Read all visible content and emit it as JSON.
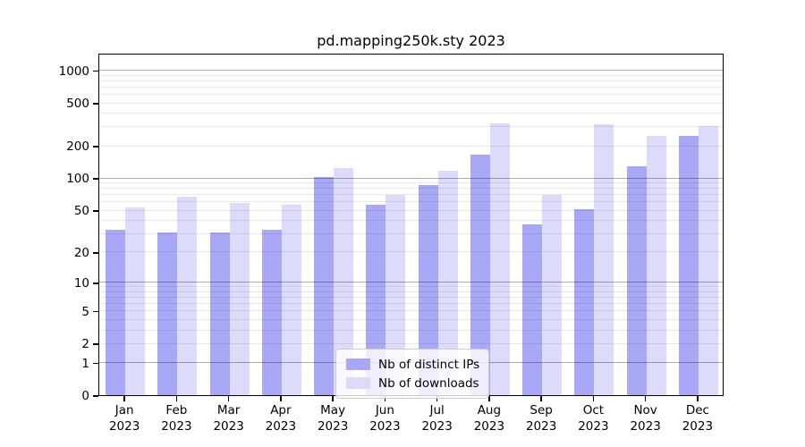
{
  "chart_data": {
    "type": "bar",
    "title": "pd.mapping250k.sty 2023",
    "categories": [
      {
        "month": "Jan",
        "year": "2023"
      },
      {
        "month": "Feb",
        "year": "2023"
      },
      {
        "month": "Mar",
        "year": "2023"
      },
      {
        "month": "Apr",
        "year": "2023"
      },
      {
        "month": "May",
        "year": "2023"
      },
      {
        "month": "Jun",
        "year": "2023"
      },
      {
        "month": "Jul",
        "year": "2023"
      },
      {
        "month": "Aug",
        "year": "2023"
      },
      {
        "month": "Sep",
        "year": "2023"
      },
      {
        "month": "Oct",
        "year": "2023"
      },
      {
        "month": "Nov",
        "year": "2023"
      },
      {
        "month": "Dec",
        "year": "2023"
      }
    ],
    "series": [
      {
        "name": "Nb of distinct IPs",
        "color": "#a8a8f7",
        "values": [
          33,
          31,
          31,
          33,
          103,
          56,
          86,
          165,
          37,
          51,
          128,
          245
        ]
      },
      {
        "name": "Nb of downloads",
        "color": "#dcdcfa",
        "values": [
          53,
          67,
          59,
          56,
          124,
          70,
          117,
          320,
          70,
          314,
          245,
          304
        ]
      }
    ],
    "xlabel": "",
    "ylabel": "",
    "yscale": "log10(1+y)",
    "ylim": [
      0,
      1450
    ],
    "y_top_units": 3.162,
    "yticks": [
      {
        "v": 0,
        "label": "0"
      },
      {
        "v": 1,
        "label": "1"
      },
      {
        "v": 2,
        "label": "2"
      },
      {
        "v": 5,
        "label": "5"
      },
      {
        "v": 10,
        "label": "10"
      },
      {
        "v": 20,
        "label": "20"
      },
      {
        "v": 50,
        "label": "50"
      },
      {
        "v": 100,
        "label": "100"
      },
      {
        "v": 200,
        "label": "200"
      },
      {
        "v": 500,
        "label": "500"
      },
      {
        "v": 1000,
        "label": "1000"
      }
    ],
    "light_gridlines": [
      2,
      3,
      4,
      5,
      6,
      7,
      8,
      9,
      20,
      30,
      40,
      50,
      60,
      70,
      80,
      90,
      200,
      300,
      400,
      500,
      600,
      700,
      800,
      900
    ],
    "emphasized_gridlines": [
      1,
      10,
      100,
      1000
    ],
    "grid": true,
    "legend_position": "lower center"
  },
  "colors": {
    "background": "#ffffff",
    "axis": "#000000",
    "bar_distinct_ips": "#a8a8f7",
    "bar_downloads": "#dcdcfa",
    "major_grid": "#aeaeae",
    "minor_grid": "#ebebeb",
    "legend_border": "#cccccc",
    "legend_background": "#ffffff"
  }
}
